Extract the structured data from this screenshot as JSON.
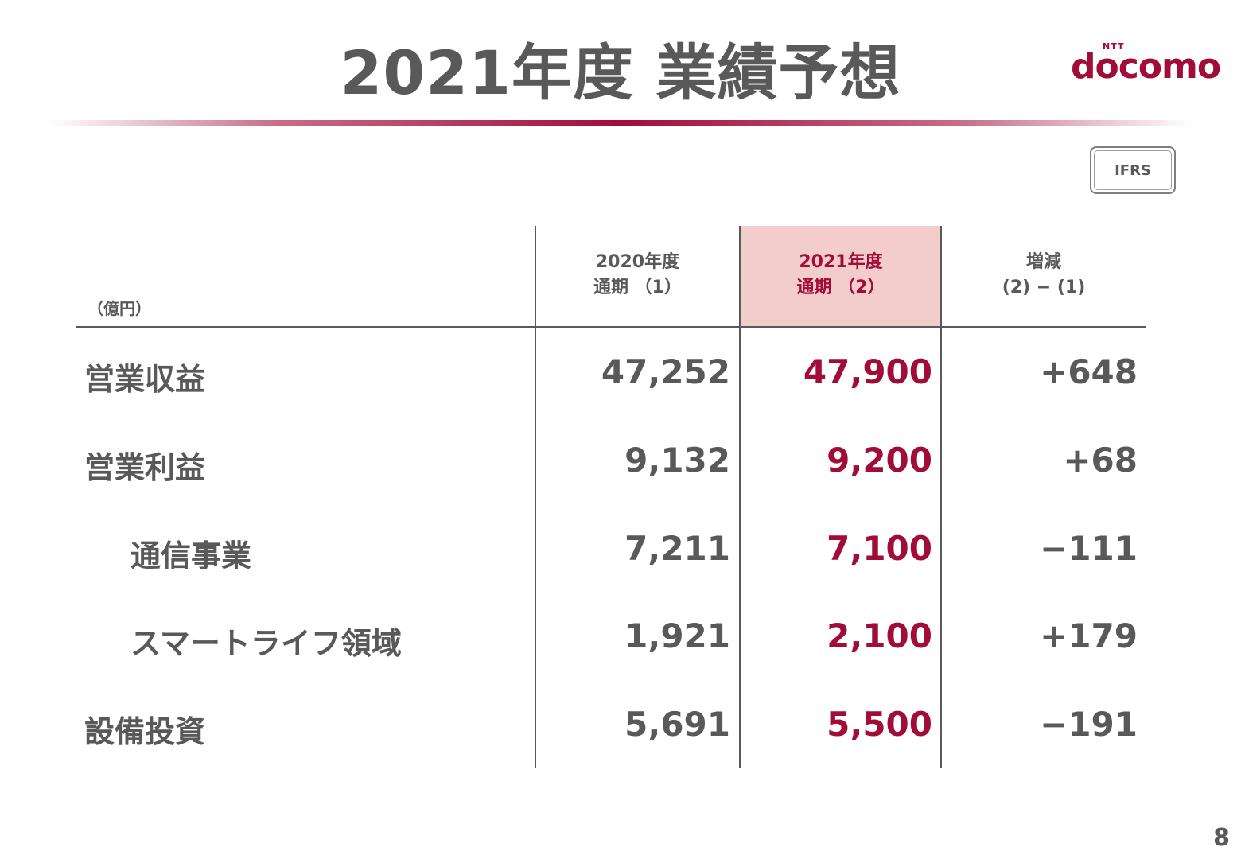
{
  "title": "2021年度 業績予想",
  "logo": {
    "small": "NTT",
    "word": "docomo"
  },
  "badge": "IFRS",
  "unit_label": "（億円）",
  "columns": [
    {
      "line1": "2020年度",
      "line2": "通期 （1）"
    },
    {
      "line1": "2021年度",
      "line2": "通期 （2）"
    },
    {
      "line1": "増減",
      "line2": "(2) − (1)"
    }
  ],
  "rows": [
    {
      "label": "営業収益",
      "v2020": "47,252",
      "v2021": "47,900",
      "diff": "+648"
    },
    {
      "label": "営業利益",
      "v2020": "9,132",
      "v2021": "9,200",
      "diff": "+68"
    },
    {
      "label": "通信事業",
      "v2020": "7,211",
      "v2021": "7,100",
      "diff": "−111"
    },
    {
      "label": "スマートライフ領域",
      "v2020": "1,921",
      "v2021": "2,100",
      "diff": "+179"
    },
    {
      "label": "設備投資",
      "v2020": "5,691",
      "v2021": "5,500",
      "diff": "−191"
    }
  ],
  "page_number": "8",
  "colors": {
    "accent": "#a10d38",
    "text": "#595959",
    "highlight": "#f3cccc"
  }
}
